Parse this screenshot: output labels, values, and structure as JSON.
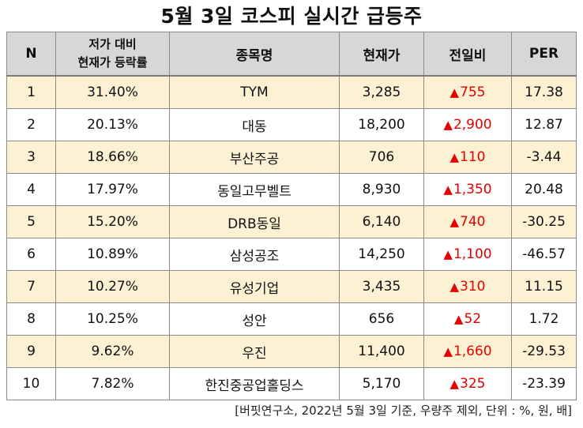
{
  "title": "5월 3일 코스피 실시간 급등주",
  "headers": {
    "n": "N",
    "rate_line1": "저가 대비",
    "rate_line2": "현재가 등락률",
    "name": "종목명",
    "price": "현재가",
    "change": "전일비",
    "per": "PER"
  },
  "up_symbol": "▲",
  "colors": {
    "header_bg": "#d7d7d7",
    "odd_row_bg": "#fdf1d4",
    "up_red": "#e60000"
  },
  "rows": [
    {
      "n": "1",
      "rate": "31.40%",
      "name": "TYM",
      "price": "3,285",
      "change": "755",
      "per": "17.38"
    },
    {
      "n": "2",
      "rate": "20.13%",
      "name": "대동",
      "price": "18,200",
      "change": "2,900",
      "per": "12.87"
    },
    {
      "n": "3",
      "rate": "18.66%",
      "name": "부산주공",
      "price": "706",
      "change": "110",
      "per": "-3.44"
    },
    {
      "n": "4",
      "rate": "17.97%",
      "name": "동일고무벨트",
      "price": "8,930",
      "change": "1,350",
      "per": "20.48"
    },
    {
      "n": "5",
      "rate": "15.20%",
      "name": "DRB동일",
      "price": "6,140",
      "change": "740",
      "per": "-30.25"
    },
    {
      "n": "6",
      "rate": "10.89%",
      "name": "삼성공조",
      "price": "14,250",
      "change": "1,100",
      "per": "-46.57"
    },
    {
      "n": "7",
      "rate": "10.27%",
      "name": "유성기업",
      "price": "3,435",
      "change": "310",
      "per": "11.15"
    },
    {
      "n": "8",
      "rate": "10.25%",
      "name": "성안",
      "price": "656",
      "change": "52",
      "per": "1.72"
    },
    {
      "n": "9",
      "rate": "9.62%",
      "name": "우진",
      "price": "11,400",
      "change": "1,660",
      "per": "-29.53"
    },
    {
      "n": "10",
      "rate": "7.82%",
      "name": "한진중공업홀딩스",
      "price": "5,170",
      "change": "325",
      "per": "-23.39"
    }
  ],
  "source": "[버핏연구소, 2022년 5월 3일 기준, 우량주 제외, 단위 : %, 원, 배]"
}
